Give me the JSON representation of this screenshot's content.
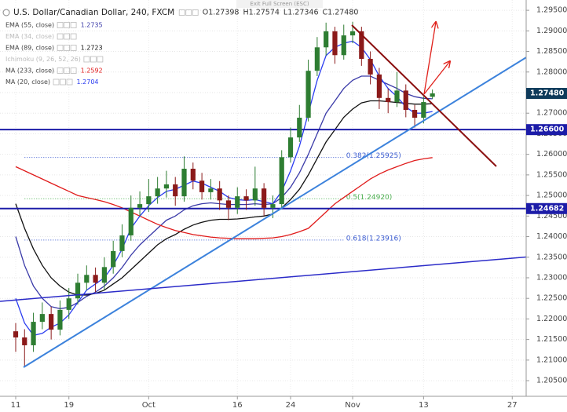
{
  "chart_data": {
    "type": "candlestick",
    "symbol": "U.S. Dollar/Canadian Dollar, 240, FXCM",
    "ohlc": [
      "O1.27398",
      "H1.27574",
      "L1.27346",
      "C1.27480"
    ],
    "overlay_text": "Exit Full Screen (ESC)",
    "x": [
      0,
      1,
      2,
      3,
      4,
      5,
      6,
      7,
      8,
      9,
      10,
      11,
      12,
      13,
      14,
      15,
      16,
      17,
      18,
      19,
      20,
      21,
      22,
      23,
      24,
      25,
      26,
      27,
      28,
      29,
      30,
      31,
      32,
      33,
      34,
      35,
      36,
      37,
      38,
      39,
      40,
      41,
      42,
      43,
      44,
      45,
      46,
      47
    ],
    "open": [
      1.217,
      1.2155,
      1.2136,
      1.2193,
      1.2212,
      1.2174,
      1.2222,
      1.225,
      1.2288,
      1.2307,
      1.2288,
      1.2326,
      1.2365,
      1.2403,
      1.247,
      1.2479,
      1.2498,
      1.2517,
      1.2527,
      1.2498,
      1.2565,
      1.2536,
      1.2508,
      1.2517,
      1.2488,
      1.247,
      1.2498,
      1.2488,
      1.2517,
      1.247,
      1.2479,
      1.2593,
      1.2641,
      1.2689,
      1.2803,
      1.286,
      1.2899,
      1.2841,
      1.2889,
      1.2899,
      1.2832,
      1.2794,
      1.2737,
      1.2727,
      1.2755,
      1.2708,
      1.2689,
      1.27398
    ],
    "high": [
      1.219,
      1.2175,
      1.2215,
      1.224,
      1.223,
      1.2245,
      1.2275,
      1.231,
      1.233,
      1.2325,
      1.235,
      1.239,
      1.243,
      1.25,
      1.251,
      1.254,
      1.2545,
      1.256,
      1.2545,
      1.2595,
      1.258,
      1.2555,
      1.254,
      1.2535,
      1.25,
      1.252,
      1.2515,
      1.257,
      1.253,
      1.25,
      1.261,
      1.2665,
      1.272,
      1.283,
      1.2885,
      1.292,
      1.291,
      1.2915,
      1.2922,
      1.291,
      1.285,
      1.281,
      1.276,
      1.28,
      1.277,
      1.272,
      1.274,
      1.27574
    ],
    "low": [
      1.212,
      1.2085,
      1.212,
      1.2175,
      1.215,
      1.216,
      1.22,
      1.2235,
      1.227,
      1.2265,
      1.227,
      1.231,
      1.235,
      1.239,
      1.245,
      1.246,
      1.248,
      1.2495,
      1.2475,
      1.2485,
      1.2515,
      1.249,
      1.249,
      1.2465,
      1.244,
      1.2455,
      1.2465,
      1.2475,
      1.245,
      1.2445,
      1.247,
      1.258,
      1.263,
      1.268,
      1.279,
      1.284,
      1.282,
      1.283,
      1.287,
      1.2815,
      1.277,
      1.271,
      1.27,
      1.2715,
      1.269,
      1.2665,
      1.2675,
      1.27346
    ],
    "close": [
      1.2155,
      1.2136,
      1.2193,
      1.2212,
      1.2174,
      1.2222,
      1.225,
      1.2288,
      1.2307,
      1.2288,
      1.2326,
      1.2365,
      1.2403,
      1.247,
      1.2479,
      1.2498,
      1.2517,
      1.2527,
      1.2498,
      1.2565,
      1.2536,
      1.2508,
      1.2517,
      1.2488,
      1.247,
      1.2498,
      1.2488,
      1.2517,
      1.247,
      1.2479,
      1.2593,
      1.2641,
      1.2689,
      1.2803,
      1.286,
      1.2899,
      1.2841,
      1.2889,
      1.2899,
      1.2832,
      1.2794,
      1.2737,
      1.2727,
      1.2755,
      1.2708,
      1.2689,
      1.2727,
      1.2748
    ],
    "up_color": "#2e7d32",
    "down_color": "#8b1a1a",
    "series": [
      {
        "name": "EMA (55, close)",
        "color": "#3a3aa8",
        "visible": true,
        "values": [
          1.24,
          1.233,
          1.228,
          1.225,
          1.223,
          1.2225,
          1.2228,
          1.224,
          1.2255,
          1.2265,
          1.228,
          1.23,
          1.2325,
          1.2355,
          1.238,
          1.24,
          1.242,
          1.244,
          1.245,
          1.2465,
          1.2475,
          1.248,
          1.2482,
          1.248,
          1.2478,
          1.2478,
          1.2478,
          1.248,
          1.2478,
          1.248,
          1.2495,
          1.252,
          1.2555,
          1.26,
          1.265,
          1.27,
          1.273,
          1.276,
          1.278,
          1.279,
          1.279,
          1.278,
          1.277,
          1.276,
          1.2748,
          1.274,
          1.2736,
          1.2735
        ]
      },
      {
        "name": "EMA (34, close)",
        "color": "#b0b0b0",
        "visible": false
      },
      {
        "name": "EMA (89, close)",
        "color": "#111111",
        "visible": true,
        "values": [
          1.248,
          1.242,
          1.237,
          1.233,
          1.23,
          1.228,
          1.2265,
          1.2258,
          1.2258,
          1.2262,
          1.227,
          1.2285,
          1.23,
          1.232,
          1.234,
          1.236,
          1.238,
          1.2395,
          1.2405,
          1.2418,
          1.2428,
          1.2435,
          1.244,
          1.2442,
          1.2442,
          1.2443,
          1.2445,
          1.2448,
          1.245,
          1.2455,
          1.247,
          1.249,
          1.2515,
          1.255,
          1.259,
          1.263,
          1.266,
          1.269,
          1.271,
          1.2725,
          1.273,
          1.273,
          1.2728,
          1.2726,
          1.2724,
          1.2722,
          1.2722,
          1.2723
        ]
      },
      {
        "name": "Ichimoku (9, 26, 52, 26)",
        "color": "#b0b0b0",
        "visible": false
      },
      {
        "name": "MA (233, close)",
        "color": "#e01b1b",
        "visible": true,
        "values": [
          1.257,
          1.256,
          1.255,
          1.254,
          1.253,
          1.252,
          1.251,
          1.25,
          1.2495,
          1.249,
          1.2485,
          1.2478,
          1.247,
          1.246,
          1.245,
          1.244,
          1.243,
          1.2422,
          1.2415,
          1.241,
          1.2405,
          1.2402,
          1.2399,
          1.2397,
          1.2396,
          1.2395,
          1.2395,
          1.2395,
          1.2396,
          1.2397,
          1.24,
          1.2405,
          1.2412,
          1.242,
          1.244,
          1.246,
          1.248,
          1.2495,
          1.251,
          1.2525,
          1.254,
          1.2552,
          1.2562,
          1.257,
          1.2578,
          1.2585,
          1.2589,
          1.2592
        ]
      },
      {
        "name": "MA (20, close)",
        "color": "#2a3cf0",
        "visible": true,
        "values": [
          1.225,
          1.219,
          1.216,
          1.2165,
          1.218,
          1.219,
          1.221,
          1.224,
          1.227,
          1.2285,
          1.23,
          1.233,
          1.237,
          1.242,
          1.245,
          1.2475,
          1.2495,
          1.251,
          1.2515,
          1.2525,
          1.2535,
          1.253,
          1.252,
          1.251,
          1.2495,
          1.249,
          1.2488,
          1.249,
          1.2485,
          1.248,
          1.251,
          1.256,
          1.262,
          1.27,
          1.278,
          1.284,
          1.286,
          1.287,
          1.2875,
          1.286,
          1.283,
          1.279,
          1.276,
          1.274,
          1.2715,
          1.27,
          1.27,
          1.2704
        ]
      }
    ],
    "xlim": [
      -1.77,
      57.57
    ],
    "xticks": [
      {
        "value": 0,
        "label": "11"
      },
      {
        "value": 6,
        "label": "19"
      },
      {
        "value": 15,
        "label": "Oct"
      },
      {
        "value": 25,
        "label": "16"
      },
      {
        "value": 31,
        "label": "24"
      },
      {
        "value": 38,
        "label": "Nov"
      },
      {
        "value": 46,
        "label": "13"
      },
      {
        "value": 56,
        "label": "27"
      }
    ],
    "ylim": [
      1.2012,
      1.2975
    ],
    "yticks": [
      {
        "value": 1.205,
        "label": "1.20500"
      },
      {
        "value": 1.21,
        "label": "1.21000"
      },
      {
        "value": 1.215,
        "label": "1.21500"
      },
      {
        "value": 1.22,
        "label": "1.22000"
      },
      {
        "value": 1.225,
        "label": "1.22500"
      },
      {
        "value": 1.23,
        "label": "1.23000"
      },
      {
        "value": 1.235,
        "label": "1.23500"
      },
      {
        "value": 1.24,
        "label": "1.24000"
      },
      {
        "value": 1.245,
        "label": "1.24500"
      },
      {
        "value": 1.25,
        "label": "1.25000"
      },
      {
        "value": 1.255,
        "label": "1.25500"
      },
      {
        "value": 1.26,
        "label": "1.26000"
      },
      {
        "value": 1.265,
        "label": "1.26500"
      },
      {
        "value": 1.27,
        "label": "1.27000"
      },
      {
        "value": 1.275,
        "label": "1.27500"
      },
      {
        "value": 1.28,
        "label": "1.28000"
      },
      {
        "value": 1.285,
        "label": "1.28500"
      },
      {
        "value": 1.29,
        "label": "1.29000"
      },
      {
        "value": 1.295,
        "label": "1.29500"
      }
    ],
    "grid": true,
    "price_lines": [
      {
        "value": 1.266,
        "label": "1.26600",
        "color": "#1c1ca8"
      },
      {
        "value": 1.24682,
        "label": "1.24682",
        "color": "#1c1ca8"
      }
    ],
    "last_price": {
      "value": 1.2748,
      "label": "1.27480",
      "color": "#0e3a5a"
    },
    "fib_levels": [
      {
        "label": "0.382(1.25925)",
        "value": 1.25925,
        "color": "#3a5bd0"
      },
      {
        "label": "0.5(1.24920)",
        "value": 1.2492,
        "color": "#4caf50"
      },
      {
        "label": "0.618(1.23916)",
        "value": 1.23916,
        "color": "#3a5bd0"
      }
    ]
  }
}
